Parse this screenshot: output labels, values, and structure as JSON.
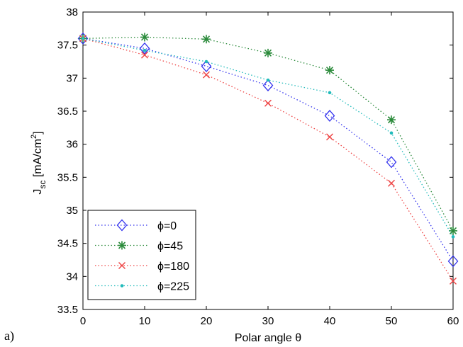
{
  "panel_label": "a)",
  "chart_data": {
    "type": "line",
    "xlabel": "Polar angle θ",
    "ylabel": {
      "main": "J",
      "sub": "sc",
      "unit_pre": " [mA/cm",
      "unit_sup": "2",
      "unit_post": "]"
    },
    "xlim": [
      0,
      60
    ],
    "ylim": [
      33.5,
      38
    ],
    "xticks": [
      0,
      10,
      20,
      30,
      40,
      50,
      60
    ],
    "yticks": [
      33.5,
      34,
      34.5,
      35,
      35.5,
      36,
      36.5,
      37,
      37.5,
      38
    ],
    "x": [
      0,
      10,
      20,
      30,
      40,
      50,
      60
    ],
    "grid": false,
    "legend_position": "bottom-left",
    "series": [
      {
        "name": "ϕ=0",
        "marker": "diamond",
        "color": "#3333ee",
        "values": [
          37.6,
          37.45,
          37.18,
          36.89,
          36.43,
          35.73,
          34.23
        ]
      },
      {
        "name": "ϕ=45",
        "marker": "asterisk",
        "color": "#2a8a3a",
        "values": [
          37.6,
          37.62,
          37.59,
          37.38,
          37.12,
          36.37,
          34.69
        ]
      },
      {
        "name": "ϕ=180",
        "marker": "x",
        "color": "#ee4444",
        "values": [
          37.6,
          37.35,
          37.05,
          36.62,
          36.11,
          35.41,
          33.93
        ]
      },
      {
        "name": "ϕ=225",
        "marker": "point",
        "color": "#22bbbb",
        "values": [
          37.6,
          37.42,
          37.25,
          36.97,
          36.78,
          36.17,
          34.6
        ]
      }
    ]
  }
}
